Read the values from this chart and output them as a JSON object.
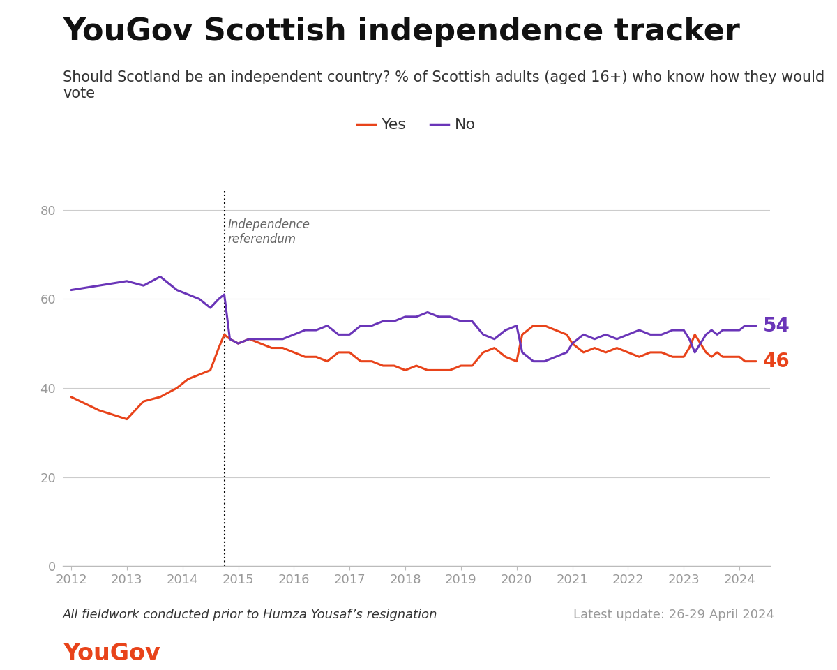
{
  "title": "YouGov Scottish independence tracker",
  "subtitle": "Should Scotland be an independent country? % of Scottish adults (aged 16+) who know how they would\nvote",
  "footnote": "All fieldwork conducted prior to Humza Yousaf’s resignation",
  "latest_update": "Latest update: 26-29 April 2024",
  "yougov_text": "YouGov",
  "referendum_label": "Independence\nreferendum",
  "referendum_date": 2014.75,
  "yes_color": "#e8431a",
  "no_color": "#6a35b8",
  "yes_label": "Yes",
  "no_label": "No",
  "end_label_yes": "46",
  "end_label_no": "54",
  "ylim": [
    0,
    85
  ],
  "yticks": [
    0,
    20,
    40,
    60,
    80
  ],
  "yes_data": [
    [
      2012.0,
      38
    ],
    [
      2012.5,
      35
    ],
    [
      2013.0,
      33
    ],
    [
      2013.3,
      37
    ],
    [
      2013.6,
      38
    ],
    [
      2013.9,
      40
    ],
    [
      2014.1,
      42
    ],
    [
      2014.3,
      43
    ],
    [
      2014.5,
      44
    ],
    [
      2014.65,
      49
    ],
    [
      2014.75,
      52
    ],
    [
      2014.85,
      51
    ],
    [
      2015.0,
      50
    ],
    [
      2015.2,
      51
    ],
    [
      2015.4,
      50
    ],
    [
      2015.6,
      49
    ],
    [
      2015.8,
      49
    ],
    [
      2016.0,
      48
    ],
    [
      2016.2,
      47
    ],
    [
      2016.4,
      47
    ],
    [
      2016.6,
      46
    ],
    [
      2016.8,
      48
    ],
    [
      2017.0,
      48
    ],
    [
      2017.2,
      46
    ],
    [
      2017.4,
      46
    ],
    [
      2017.6,
      45
    ],
    [
      2017.8,
      45
    ],
    [
      2018.0,
      44
    ],
    [
      2018.2,
      45
    ],
    [
      2018.4,
      44
    ],
    [
      2018.6,
      44
    ],
    [
      2018.8,
      44
    ],
    [
      2019.0,
      45
    ],
    [
      2019.2,
      45
    ],
    [
      2019.4,
      48
    ],
    [
      2019.6,
      49
    ],
    [
      2019.8,
      47
    ],
    [
      2020.0,
      46
    ],
    [
      2020.1,
      52
    ],
    [
      2020.3,
      54
    ],
    [
      2020.5,
      54
    ],
    [
      2020.7,
      53
    ],
    [
      2020.9,
      52
    ],
    [
      2021.0,
      50
    ],
    [
      2021.2,
      48
    ],
    [
      2021.4,
      49
    ],
    [
      2021.6,
      48
    ],
    [
      2021.8,
      49
    ],
    [
      2022.0,
      48
    ],
    [
      2022.2,
      47
    ],
    [
      2022.4,
      48
    ],
    [
      2022.6,
      48
    ],
    [
      2022.8,
      47
    ],
    [
      2023.0,
      47
    ],
    [
      2023.1,
      49
    ],
    [
      2023.2,
      52
    ],
    [
      2023.3,
      50
    ],
    [
      2023.4,
      48
    ],
    [
      2023.5,
      47
    ],
    [
      2023.6,
      48
    ],
    [
      2023.7,
      47
    ],
    [
      2023.8,
      47
    ],
    [
      2023.9,
      47
    ],
    [
      2024.0,
      47
    ],
    [
      2024.1,
      46
    ],
    [
      2024.3,
      46
    ]
  ],
  "no_data": [
    [
      2012.0,
      62
    ],
    [
      2012.5,
      63
    ],
    [
      2013.0,
      64
    ],
    [
      2013.3,
      63
    ],
    [
      2013.6,
      65
    ],
    [
      2013.9,
      62
    ],
    [
      2014.1,
      61
    ],
    [
      2014.3,
      60
    ],
    [
      2014.5,
      58
    ],
    [
      2014.65,
      60
    ],
    [
      2014.75,
      61
    ],
    [
      2014.85,
      51
    ],
    [
      2015.0,
      50
    ],
    [
      2015.2,
      51
    ],
    [
      2015.4,
      51
    ],
    [
      2015.6,
      51
    ],
    [
      2015.8,
      51
    ],
    [
      2016.0,
      52
    ],
    [
      2016.2,
      53
    ],
    [
      2016.4,
      53
    ],
    [
      2016.6,
      54
    ],
    [
      2016.8,
      52
    ],
    [
      2017.0,
      52
    ],
    [
      2017.2,
      54
    ],
    [
      2017.4,
      54
    ],
    [
      2017.6,
      55
    ],
    [
      2017.8,
      55
    ],
    [
      2018.0,
      56
    ],
    [
      2018.2,
      56
    ],
    [
      2018.4,
      57
    ],
    [
      2018.6,
      56
    ],
    [
      2018.8,
      56
    ],
    [
      2019.0,
      55
    ],
    [
      2019.2,
      55
    ],
    [
      2019.4,
      52
    ],
    [
      2019.6,
      51
    ],
    [
      2019.8,
      53
    ],
    [
      2020.0,
      54
    ],
    [
      2020.1,
      48
    ],
    [
      2020.3,
      46
    ],
    [
      2020.5,
      46
    ],
    [
      2020.7,
      47
    ],
    [
      2020.9,
      48
    ],
    [
      2021.0,
      50
    ],
    [
      2021.2,
      52
    ],
    [
      2021.4,
      51
    ],
    [
      2021.6,
      52
    ],
    [
      2021.8,
      51
    ],
    [
      2022.0,
      52
    ],
    [
      2022.2,
      53
    ],
    [
      2022.4,
      52
    ],
    [
      2022.6,
      52
    ],
    [
      2022.8,
      53
    ],
    [
      2023.0,
      53
    ],
    [
      2023.1,
      51
    ],
    [
      2023.2,
      48
    ],
    [
      2023.3,
      50
    ],
    [
      2023.4,
      52
    ],
    [
      2023.5,
      53
    ],
    [
      2023.6,
      52
    ],
    [
      2023.7,
      53
    ],
    [
      2023.8,
      53
    ],
    [
      2023.9,
      53
    ],
    [
      2024.0,
      53
    ],
    [
      2024.1,
      54
    ],
    [
      2024.3,
      54
    ]
  ],
  "background_color": "#ffffff",
  "grid_color": "#cccccc",
  "axis_color": "#bbbbbb",
  "tick_color": "#999999",
  "title_fontsize": 32,
  "subtitle_fontsize": 15,
  "footnote_fontsize": 13,
  "update_fontsize": 13
}
